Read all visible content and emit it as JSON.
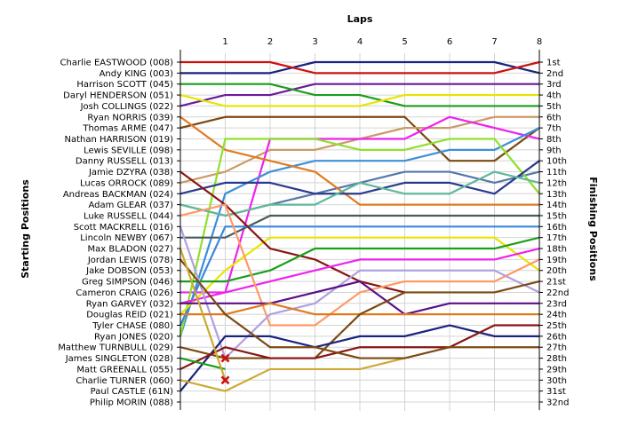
{
  "chart_data": {
    "type": "line",
    "title": "",
    "xlabel": "Laps",
    "ylabel_left": "Starting Positions",
    "ylabel_right": "Finishing Positions",
    "laps": [
      "1",
      "2",
      "3",
      "4",
      "5",
      "6",
      "7",
      "8"
    ],
    "xlim": [
      0,
      8
    ],
    "ylim": [
      1,
      32
    ],
    "grid": true,
    "starting_labels": [
      "Charlie EASTWOOD (008)",
      "Andy KING (003)",
      "Harrison SCOTT (045)",
      "Daryl HENDERSON (051)",
      "Josh COLLINGS (022)",
      "Ryan NORRIS (039)",
      "Thomas ARME (047)",
      "Nathan HARRISON (019)",
      "Lewis SEVILLE (098)",
      "Danny RUSSELL (013)",
      "Jamie DZYRA (038)",
      "Lucas ORROCK (089)",
      "Andreas BACKMAN (024)",
      "Adam GLEAR (037)",
      "Luke RUSSELL (044)",
      "Scott MACKRELL (016)",
      "Lincoln NEWBY (067)",
      "Max BLADON (027)",
      "Jordan LEWIS (078)",
      "Jake DOBSON (053)",
      "Greg SIMPSON (046)",
      "Cameron CRAIG (026)",
      "Ryan GARVEY (032)",
      "Douglas REID (021)",
      "Tyler CHASE (080)",
      "Ryan JONES (020)",
      "Matthew TURNBULL (029)",
      "James SINGLETON (028)",
      "Matt GREENALL (055)",
      "Charlie TURNER (060)",
      "Paul CASTLE (61N)",
      "Philip MORIN (088)"
    ],
    "finishing_labels": [
      "1st",
      "2nd",
      "3rd",
      "4th",
      "5th",
      "6th",
      "7th",
      "8th",
      "9th",
      "10th",
      "11th",
      "12th",
      "13th",
      "14th",
      "15th",
      "16th",
      "17th",
      "18th",
      "19th",
      "20th",
      "21st",
      "22nd",
      "23rd",
      "24th",
      "25th",
      "26th",
      "27th",
      "28th",
      "29th",
      "30th",
      "31st",
      "32nd"
    ],
    "series": [
      {
        "color": "#1a237e",
        "positions": [
          2,
          2,
          2,
          1,
          1,
          1,
          1,
          1,
          2
        ]
      },
      {
        "color": "#cc1111",
        "positions": [
          1,
          1,
          1,
          2,
          2,
          2,
          2,
          2,
          1
        ]
      },
      {
        "color": "#6a1b9a",
        "positions": [
          5,
          4,
          4,
          3,
          3,
          3,
          3,
          3,
          3
        ]
      },
      {
        "color": "#1b9e1b",
        "positions": [
          3,
          3,
          3,
          4,
          4,
          5,
          5,
          5,
          5
        ]
      },
      {
        "color": "#e6e600",
        "positions": [
          4,
          5,
          5,
          5,
          5,
          4,
          4,
          4,
          4
        ]
      },
      {
        "color": "#7b4a12",
        "positions": [
          7,
          6,
          6,
          6,
          6,
          6,
          10,
          10,
          7
        ]
      },
      {
        "color": "#cc9966",
        "positions": [
          12,
          11,
          9,
          9,
          8,
          7,
          7,
          6,
          6
        ]
      },
      {
        "color": "#ee22ee",
        "positions": [
          22,
          22,
          8,
          8,
          8,
          8,
          6,
          7,
          8
        ]
      },
      {
        "color": "#5577aa",
        "positions": [
          14,
          15,
          14,
          13,
          12,
          11,
          11,
          12,
          11
        ]
      },
      {
        "color": "#3b8fd9",
        "positions": [
          26,
          13,
          11,
          10,
          10,
          10,
          9,
          9,
          7
        ]
      },
      {
        "color": "#e07a1f",
        "positions": [
          6,
          9,
          10,
          11,
          14,
          14,
          14,
          14,
          14
        ]
      },
      {
        "color": "#8fe02a",
        "positions": [
          26,
          8,
          8,
          8,
          9,
          9,
          8,
          8,
          13
        ]
      },
      {
        "color": "#2a3a8c",
        "positions": [
          13,
          12,
          12,
          13,
          13,
          12,
          12,
          13,
          10
        ]
      },
      {
        "color": "#5fb89a",
        "positions": [
          14,
          15,
          14,
          14,
          12,
          13,
          13,
          11,
          12
        ]
      },
      {
        "color": "#4a5a5a",
        "positions": [
          17,
          17,
          15,
          15,
          15,
          15,
          15,
          15,
          15
        ]
      },
      {
        "color": "#3a88dd",
        "positions": [
          25,
          16,
          16,
          16,
          16,
          16,
          16,
          16,
          16
        ]
      },
      {
        "color": "#e6e600",
        "positions": [
          24,
          20,
          17,
          17,
          17,
          17,
          17,
          17,
          20
        ]
      },
      {
        "color": "#8a1414",
        "positions": [
          11,
          14,
          18,
          19,
          21,
          22,
          0,
          0,
          0
        ]
      },
      {
        "color": "#1b9e1b",
        "positions": [
          21,
          21,
          20,
          18,
          18,
          18,
          18,
          18,
          17
        ]
      },
      {
        "color": "#ee22ee",
        "positions": [
          23,
          22,
          21,
          20,
          19,
          19,
          19,
          19,
          18
        ]
      },
      {
        "color": "#ff9966",
        "positions": [
          15,
          14,
          25,
          25,
          22,
          21,
          21,
          21,
          19
        ]
      },
      {
        "color": "#b0a0e0",
        "positions": [
          16,
          28,
          24,
          23,
          20,
          20,
          20,
          20,
          22
        ]
      },
      {
        "color": "#5a0e8a",
        "positions": [
          23,
          23,
          23,
          22,
          21,
          24,
          23,
          23,
          23
        ]
      },
      {
        "color": "#e07a1f",
        "positions": [
          24,
          24,
          23,
          24,
          24,
          24,
          24,
          24,
          24
        ]
      },
      {
        "color": "#7b4a12",
        "positions": [
          27,
          28,
          28,
          28,
          24,
          22,
          22,
          22,
          21
        ]
      },
      {
        "color": "#1a237e",
        "positions": [
          31,
          26,
          26,
          27,
          26,
          26,
          25,
          26,
          26
        ]
      },
      {
        "color": "#8a1414",
        "positions": [
          29,
          27,
          28,
          28,
          27,
          27,
          27,
          25,
          25
        ]
      },
      {
        "color": "#ccaa33",
        "positions": [
          30,
          31,
          29,
          29,
          29,
          28,
          0,
          0,
          0
        ]
      },
      {
        "color": "#7b4a12",
        "positions": [
          19,
          24,
          27,
          27,
          28,
          28,
          27,
          27,
          27
        ]
      },
      {
        "color": "#1b9e1b",
        "positions": [
          28,
          29,
          0,
          0,
          0,
          0,
          0,
          0,
          0
        ]
      },
      {
        "color": "#ccaa33",
        "positions": [
          18,
          30,
          0,
          0,
          0,
          0,
          0,
          0,
          0
        ]
      }
    ],
    "retirements": [
      {
        "lap": 1,
        "position": 28,
        "color": "#cc1111"
      },
      {
        "lap": 1,
        "position": 30,
        "color": "#cc1111"
      }
    ]
  }
}
